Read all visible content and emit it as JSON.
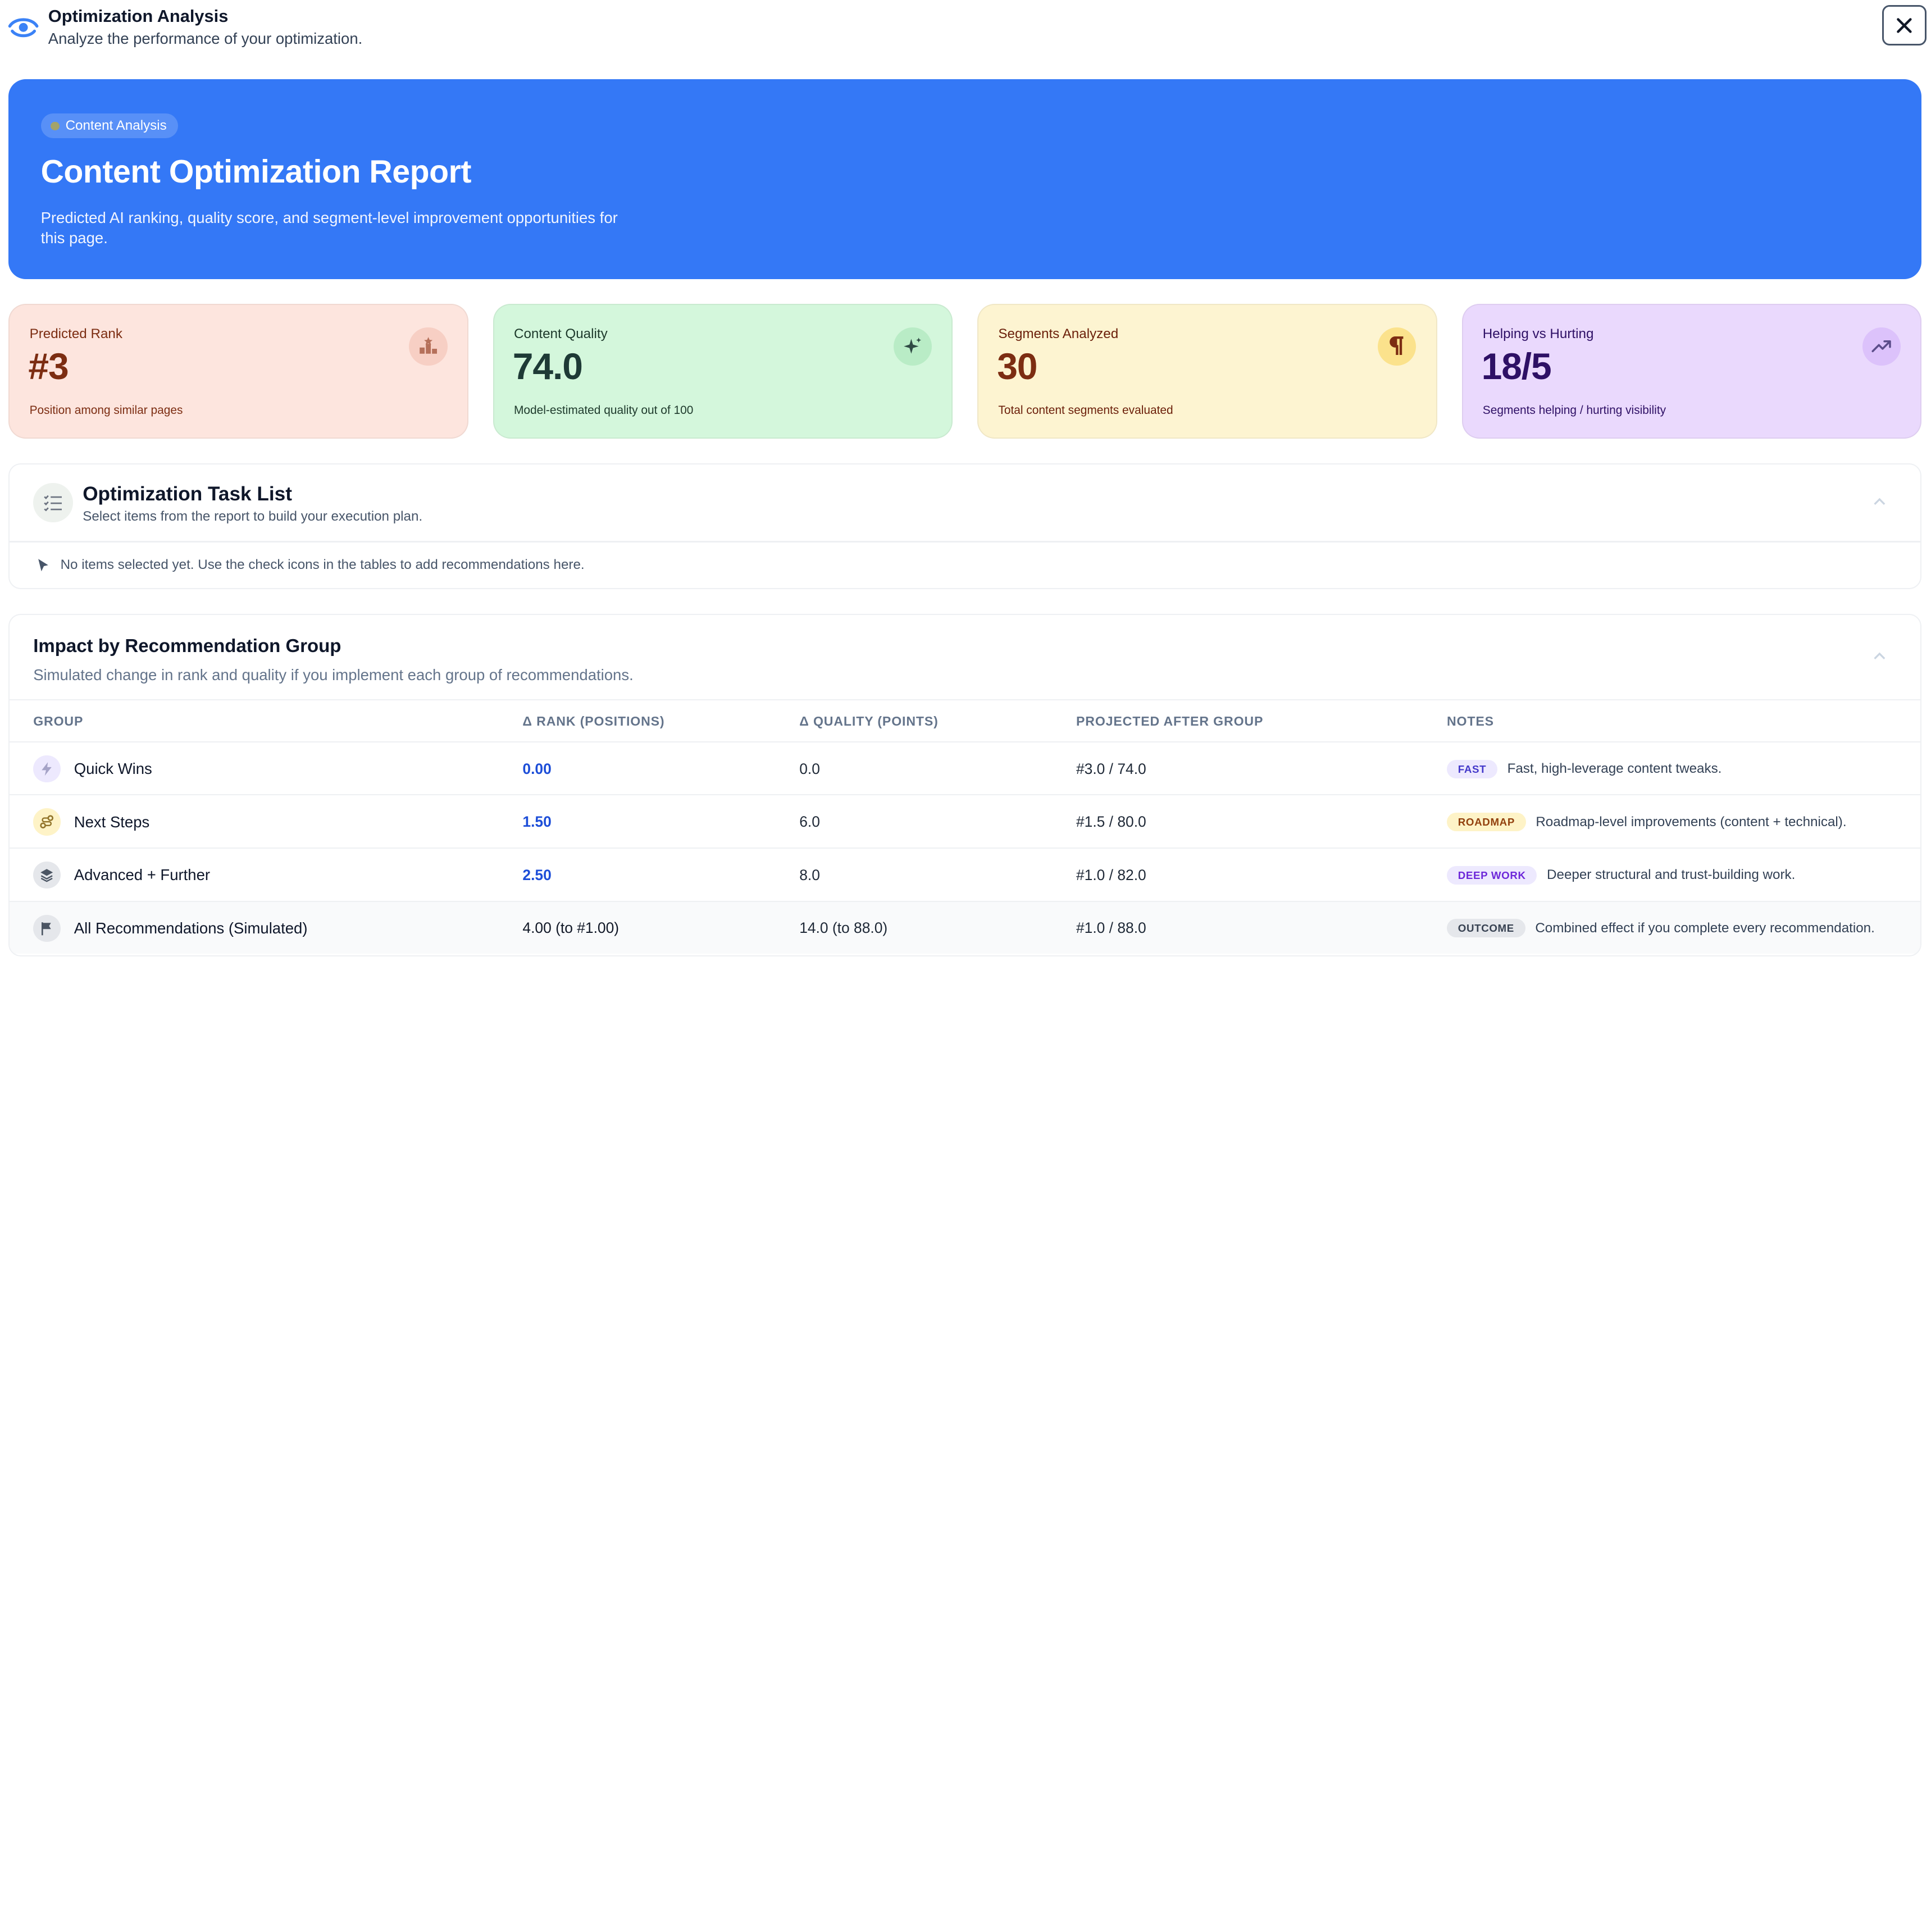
{
  "header": {
    "title": "Optimization Analysis",
    "subtitle": "Analyze the performance of your optimization.",
    "logo_icon": "eye-icon",
    "close_icon": "close-icon"
  },
  "hero": {
    "badge": "Content Analysis",
    "title": "Content Optimization Report",
    "description": "Predicted AI ranking, quality score, and segment-level improvement opportunities for this page.",
    "background_color": "#3478f6"
  },
  "stats": [
    {
      "label": "Predicted Rank",
      "value": "#3",
      "description": "Position among similar pages",
      "icon": "podium-icon",
      "color": "#fde5de"
    },
    {
      "label": "Content Quality",
      "value": "74.0",
      "description": "Model-estimated quality out of 100",
      "icon": "sparkle-icon",
      "color": "#d4f7dc"
    },
    {
      "label": "Segments Analyzed",
      "value": "30",
      "description": "Total content segments evaluated",
      "icon": "paragraph-icon",
      "color": "#fdf4d1"
    },
    {
      "label": "Helping vs Hurting",
      "value": "18/5",
      "description": "Segments helping / hurting visibility",
      "icon": "trend-up-icon",
      "color": "#ead9fd"
    }
  ],
  "task_list": {
    "title": "Optimization Task List",
    "subtitle": "Select items from the report to build your execution plan.",
    "empty_message": "No items selected yet. Use the check icons in the tables to add recommendations here.",
    "icon": "checklist-icon"
  },
  "impact": {
    "title": "Impact by Recommendation Group",
    "subtitle": "Simulated change in rank and quality if you implement each group of recommendations.",
    "columns": [
      "GROUP",
      "Δ RANK (POSITIONS)",
      "Δ QUALITY (POINTS)",
      "PROJECTED AFTER GROUP",
      "NOTES"
    ],
    "rows": [
      {
        "group": "Quick Wins",
        "icon": "lightning-icon",
        "rank": "0.00",
        "quality": "0.0",
        "projected": "#3.0 / 74.0",
        "tag": "FAST",
        "tag_color": "#ede9fe",
        "tag_text_color": "#4338ca",
        "note": "Fast, high-leverage content tweaks."
      },
      {
        "group": "Next Steps",
        "icon": "route-icon",
        "rank": "1.50",
        "quality": "6.0",
        "projected": "#1.5 / 80.0",
        "tag": "ROADMAP",
        "tag_color": "#fef3c7",
        "tag_text_color": "#92400e",
        "note": "Roadmap-level improvements (content + technical)."
      },
      {
        "group": "Advanced + Further",
        "icon": "layers-icon",
        "rank": "2.50",
        "quality": "8.0",
        "projected": "#1.0 / 82.0",
        "tag": "DEEP WORK",
        "tag_color": "#ede9fe",
        "tag_text_color": "#6d28d9",
        "note": "Deeper structural and trust-building work."
      },
      {
        "group": "All Recommendations (Simulated)",
        "icon": "flag-icon",
        "rank": "4.00 (to #1.00)",
        "quality": "14.0 (to 88.0)",
        "projected": "#1.0 / 88.0",
        "tag": "OUTCOME",
        "tag_color": "#e5e7eb",
        "tag_text_color": "#374151",
        "note": "Combined effect if you complete every recommendation."
      }
    ]
  }
}
